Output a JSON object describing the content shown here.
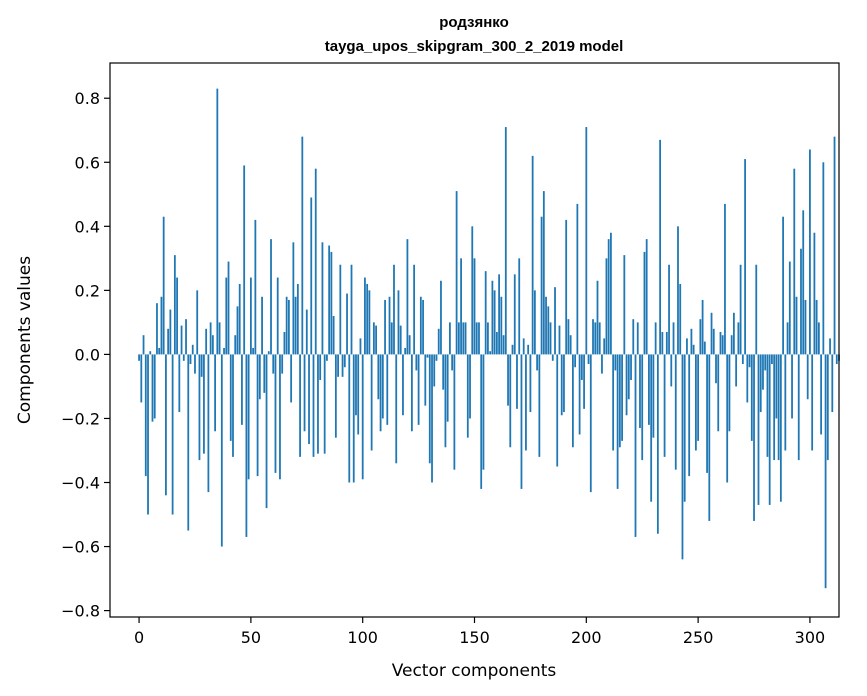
{
  "chart_data": {
    "type": "bar",
    "title": "родзянко",
    "subtitle": "tayga_upos_skipgram_300_2_2019 model",
    "xlabel": "Vector components",
    "ylabel": "Components values",
    "xlim": [
      -13,
      313
    ],
    "ylim": [
      -0.82,
      0.91
    ],
    "xticks": [
      0,
      50,
      100,
      150,
      200,
      250,
      300
    ],
    "yticks": [
      -0.8,
      -0.6,
      -0.4,
      -0.2,
      0.0,
      0.2,
      0.4,
      0.6,
      0.8
    ],
    "ytick_labels": [
      "−0.8",
      "−0.6",
      "−0.4",
      "−0.2",
      "0.0",
      "0.2",
      "0.4",
      "0.6",
      "0.8"
    ],
    "bar_color": "#1f77b4",
    "grid": false,
    "values": [
      -0.02,
      -0.15,
      0.06,
      -0.38,
      -0.5,
      0.01,
      -0.21,
      -0.2,
      0.16,
      0.02,
      0.18,
      0.43,
      -0.44,
      0.08,
      0.14,
      -0.5,
      0.31,
      0.24,
      -0.18,
      0.09,
      -0.02,
      0.11,
      -0.55,
      -0.03,
      0.03,
      -0.06,
      0.2,
      -0.33,
      -0.07,
      -0.31,
      0.08,
      -0.43,
      0.1,
      0.06,
      -0.24,
      0.83,
      0.1,
      -0.6,
      0.02,
      0.24,
      0.29,
      -0.27,
      -0.32,
      0.06,
      0.15,
      0.22,
      -0.22,
      0.59,
      -0.57,
      -0.39,
      0.24,
      0.02,
      0.42,
      -0.38,
      -0.14,
      0.18,
      -0.12,
      -0.48,
      0.01,
      0.36,
      -0.06,
      -0.37,
      0.24,
      -0.39,
      -0.06,
      0.07,
      0.18,
      0.17,
      -0.15,
      0.35,
      0.18,
      0.22,
      -0.32,
      0.68,
      -0.24,
      0.14,
      -0.28,
      0.49,
      -0.32,
      0.58,
      -0.31,
      -0.08,
      0.35,
      -0.31,
      -0.02,
      0.34,
      0.32,
      0.12,
      -0.26,
      -0.07,
      0.28,
      -0.07,
      -0.04,
      0.19,
      -0.4,
      0.28,
      -0.4,
      -0.19,
      -0.25,
      0.05,
      -0.39,
      0.24,
      0.22,
      0.2,
      -0.3,
      0.1,
      0.09,
      -0.14,
      -0.24,
      -0.2,
      0.17,
      -0.22,
      0.18,
      0.1,
      0.28,
      -0.34,
      0.2,
      0.09,
      -0.19,
      0.02,
      0.36,
      0.06,
      -0.24,
      0.28,
      -0.05,
      -0.22,
      0.18,
      0.17,
      -0.16,
      -0.01,
      -0.34,
      -0.4,
      -0.1,
      -0.02,
      0.08,
      0.23,
      -0.11,
      -0.29,
      -0.21,
      0.1,
      -0.05,
      -0.36,
      0.51,
      0.1,
      0.3,
      0.1,
      0.1,
      -0.26,
      -0.2,
      0.4,
      0.3,
      0.1,
      0.1,
      -0.42,
      -0.36,
      0.26,
      0.1,
      0.01,
      0.23,
      0.2,
      0.07,
      0.25,
      0.18,
      0.06,
      0.71,
      -0.16,
      -0.29,
      0.03,
      0.25,
      -0.17,
      0.3,
      -0.42,
      0.05,
      -0.3,
      0.03,
      -0.18,
      0.62,
      0.2,
      -0.05,
      -0.32,
      0.43,
      0.51,
      0.18,
      0.15,
      0.1,
      -0.02,
      0.21,
      -0.35,
      0.09,
      -0.19,
      -0.18,
      0.42,
      0.11,
      0.06,
      -0.29,
      -0.04,
      0.47,
      -0.25,
      -0.08,
      -0.17,
      0.71,
      -0.03,
      -0.43,
      0.11,
      0.1,
      0.23,
      0.1,
      -0.06,
      0.05,
      0.3,
      0.36,
      0.38,
      -0.3,
      -0.05,
      -0.42,
      -0.29,
      -0.27,
      0.31,
      -0.19,
      -0.14,
      -0.08,
      0.11,
      -0.57,
      0.1,
      -0.23,
      -0.33,
      0.32,
      0.36,
      -0.22,
      -0.46,
      -0.26,
      0.1,
      -0.56,
      0.67,
      0.07,
      -0.32,
      0.07,
      0.28,
      -0.1,
      0.1,
      -0.36,
      0.4,
      0.22,
      -0.64,
      -0.46,
      0.05,
      -0.38,
      0.08,
      0.03,
      -0.3,
      -0.27,
      0.11,
      0.17,
      0.04,
      -0.37,
      -0.52,
      0.13,
      0.08,
      -0.09,
      -0.24,
      0.07,
      0.06,
      0.47,
      -0.4,
      -0.24,
      0.06,
      0.13,
      -0.1,
      0.1,
      0.28,
      -0.03,
      0.61,
      -0.15,
      -0.04,
      -0.27,
      -0.52,
      0.28,
      -0.47,
      -0.18,
      -0.11,
      -0.05,
      -0.32,
      -0.47,
      -0.03,
      -0.33,
      -0.2,
      -0.33,
      -0.46,
      0.43,
      -0.3,
      0.1,
      0.29,
      -0.2,
      0.58,
      0.18,
      -0.33,
      0.33,
      0.45,
      0.17,
      -0.14,
      0.64,
      -0.3,
      0.38,
      0.17,
      0.1,
      -0.25,
      0.6,
      -0.73,
      -0.33,
      0.05,
      -0.18,
      0.68,
      -0.03,
      -0.02
    ]
  }
}
